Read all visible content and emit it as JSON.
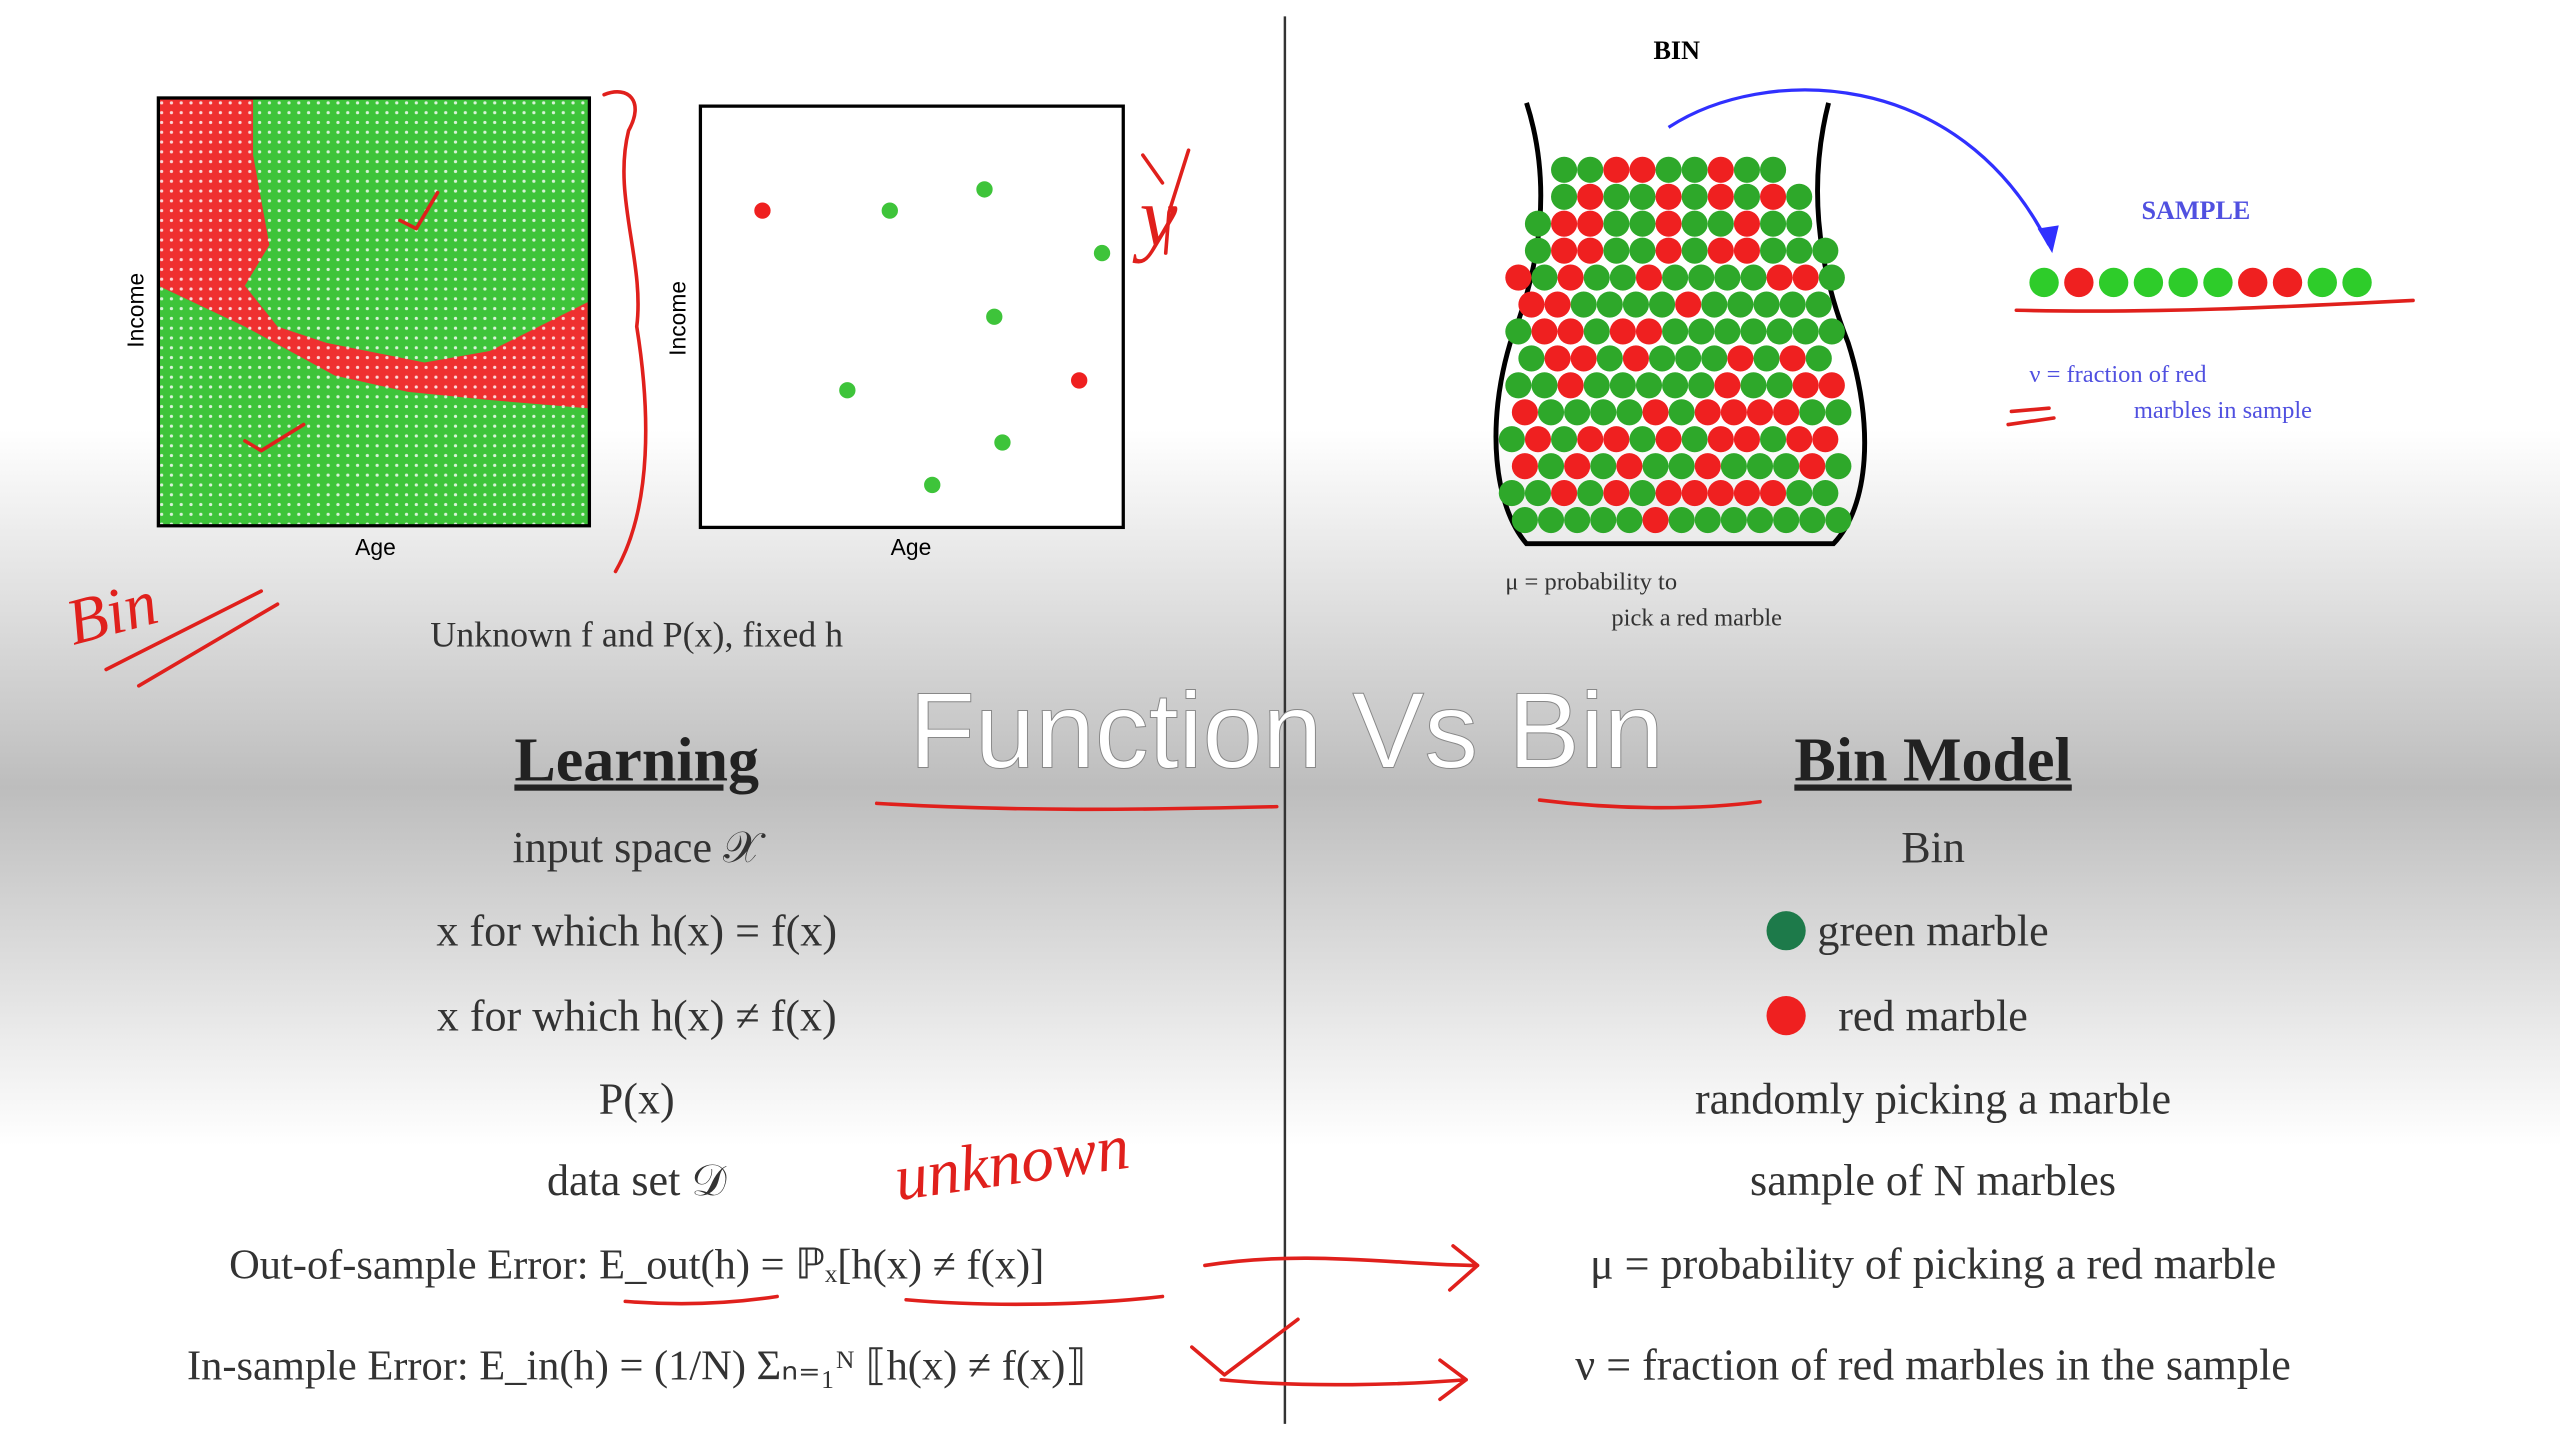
{
  "title": "Function Vs Bin",
  "figures": {
    "left_plot_x": "Age",
    "left_plot_y": "Income",
    "right_plot_x": "Age",
    "right_plot_y": "Income",
    "caption": "Unknown f and P(x), fixed h",
    "bin_label": "BIN",
    "sample_label": "SAMPLE",
    "nu_def": [
      "ν  =  fraction of red",
      "marbles in sample"
    ],
    "mu_def": [
      "μ  =  probability to",
      "pick a red marble"
    ]
  },
  "annotations": [
    "Bin",
    "y",
    "unknown"
  ],
  "learning": {
    "heading": "Learning",
    "rows": [
      "input space 𝒳",
      "x for which h(x) = f(x)",
      "x for which h(x) ≠ f(x)",
      "P(x)",
      "data set 𝒟",
      "Out-of-sample Error:  E_out(h) = ℙₓ[h(x) ≠ f(x)]",
      "In-sample Error:  E_in(h) = (1/N) Σₙ₌₁ᴺ ⟦h(x) ≠ f(x)⟧"
    ]
  },
  "bin_model": {
    "heading": "Bin Model",
    "rows": [
      "Bin",
      "green marble",
      "red marble",
      "randomly picking a marble",
      "sample of N marbles",
      "μ = probability of picking a red marble",
      "ν = fraction of red marbles in the sample"
    ]
  }
}
